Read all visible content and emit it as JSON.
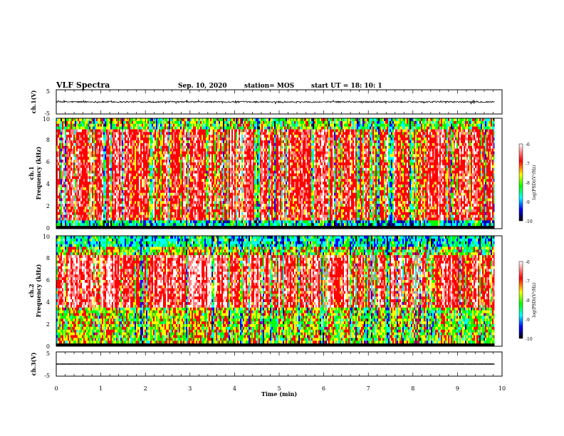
{
  "header": {
    "title": "VLF Spectra",
    "date": "Sep. 10, 2020",
    "station": "station= MOS",
    "start": "start  UT =   18: 10: 1"
  },
  "chart_data": [
    {
      "type": "line",
      "ylabel": "ch.1(V)",
      "ylim": [
        -5,
        5
      ],
      "yticks": [
        "5",
        "-5"
      ],
      "baseline": 0,
      "noise_amplitude": 0.6
    },
    {
      "type": "heatmap",
      "ylabel_top": "ch.1",
      "ylabel": "Frequency  (kHz)",
      "ylim": [
        0,
        10
      ],
      "yticks": [
        "0",
        "2",
        "4",
        "6",
        "8",
        "10"
      ],
      "colorbar": {
        "label": "log(PSD)(V²/Hz)",
        "range": [
          -10,
          -6
        ],
        "ticks": [
          "-6",
          "-7",
          "-8",
          "-9",
          "-10"
        ],
        "colors": [
          "#ffffff",
          "#ff0000",
          "#ffff00",
          "#00ff00",
          "#00ffff",
          "#0000ff",
          "#000000"
        ]
      }
    },
    {
      "type": "heatmap",
      "ylabel_top": "ch.2",
      "ylabel": "Frequency  (kHz)",
      "ylim": [
        0,
        10
      ],
      "yticks": [
        "0",
        "2",
        "4",
        "6",
        "8",
        "10"
      ],
      "colorbar": {
        "label": "log(PSD)(V²/Hz)",
        "range": [
          -10,
          -6
        ],
        "ticks": [
          "-6",
          "-7",
          "-8",
          "-9",
          "-10"
        ],
        "colors": [
          "#ffffff",
          "#ff0000",
          "#ffff00",
          "#00ff00",
          "#00ffff",
          "#0000ff",
          "#000000"
        ]
      }
    },
    {
      "type": "line",
      "ylabel": "ch.3(V)",
      "ylim": [
        -5,
        5
      ],
      "yticks": [
        "5",
        "-5"
      ],
      "baseline": 0,
      "noise_amplitude": 0.05
    }
  ],
  "xaxis": {
    "label": "Time  (min)",
    "xlim": [
      0,
      10
    ],
    "ticks": [
      "0",
      "1",
      "2",
      "3",
      "4",
      "5",
      "6",
      "7",
      "8",
      "9",
      "10"
    ],
    "data_end": 9.83
  }
}
